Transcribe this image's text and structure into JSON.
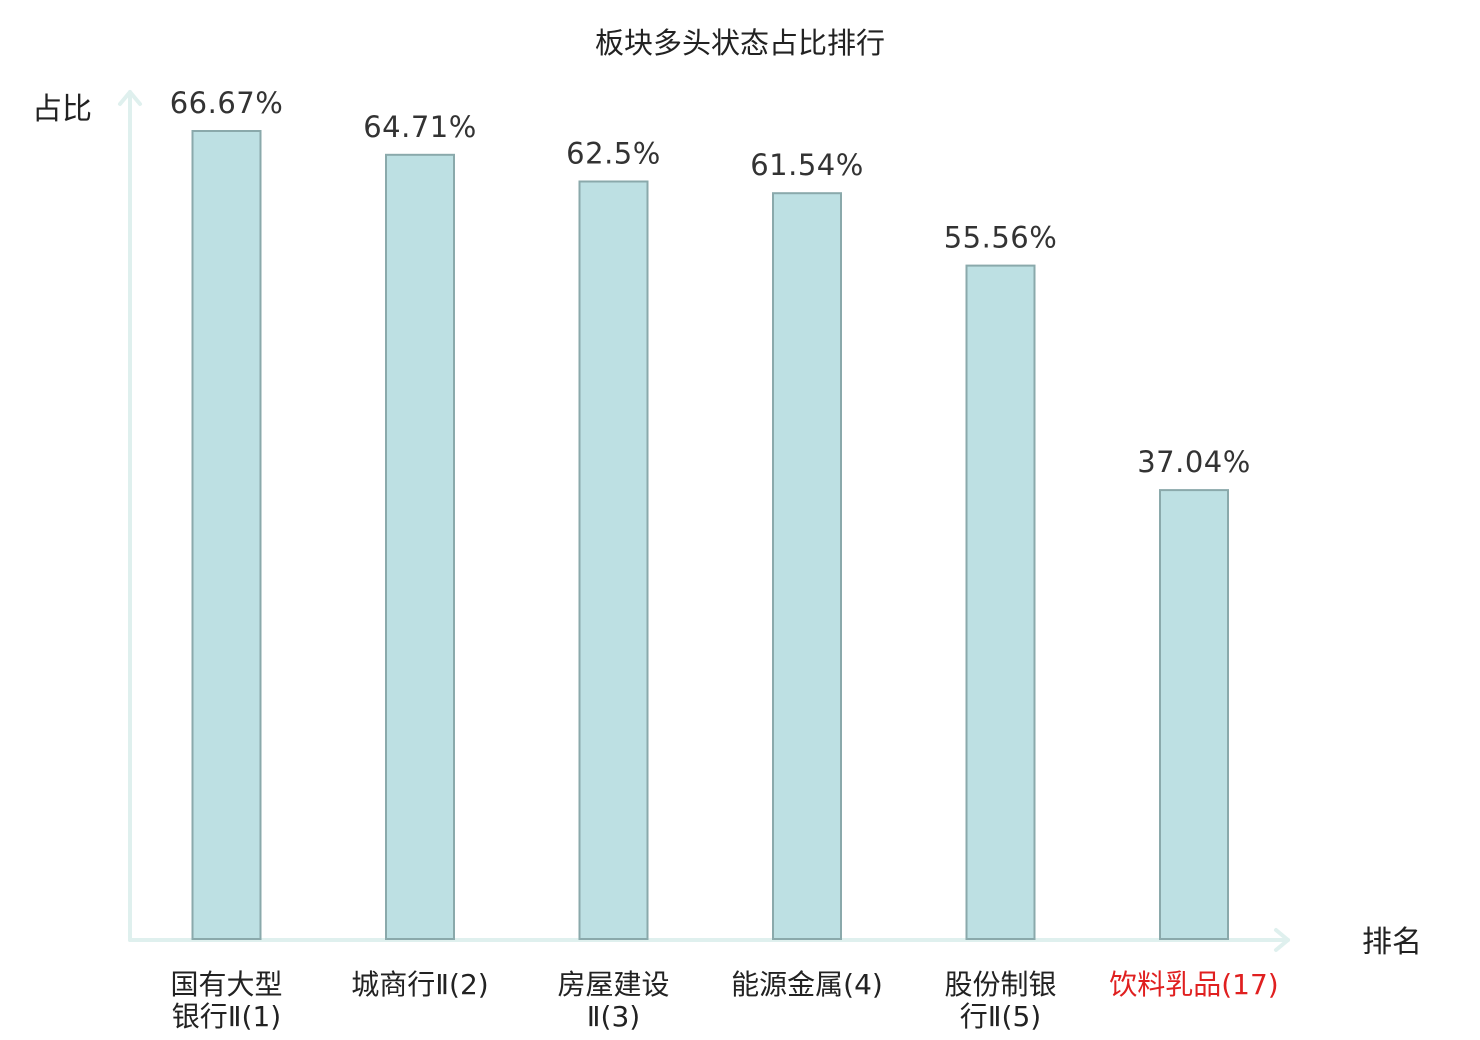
{
  "chart_data": {
    "type": "bar",
    "title": "板块多头状态占比排行",
    "ylabel": "占比",
    "xlabel": "排名",
    "ylim": [
      0,
      70
    ],
    "categories": [
      [
        "国有大型",
        "银行Ⅱ(1)"
      ],
      [
        "城商行Ⅱ(2)"
      ],
      [
        "房屋建设",
        "Ⅱ(3)"
      ],
      [
        "能源金属(4)"
      ],
      [
        "股份制银",
        "行Ⅱ(5)"
      ],
      [
        "饮料乳品(17)"
      ]
    ],
    "values": [
      66.67,
      64.71,
      62.5,
      61.54,
      55.56,
      37.04
    ],
    "value_labels": [
      "66.67%",
      "64.71%",
      "62.5%",
      "61.54%",
      "55.56%",
      "37.04%"
    ],
    "highlight_index": 5,
    "colors": {
      "bar_fill": "#bde0e3",
      "bar_stroke": "#8aa9ab",
      "axis": "#dff0ee",
      "highlight_text": "#e02020"
    },
    "grid": false,
    "legend": "none"
  }
}
